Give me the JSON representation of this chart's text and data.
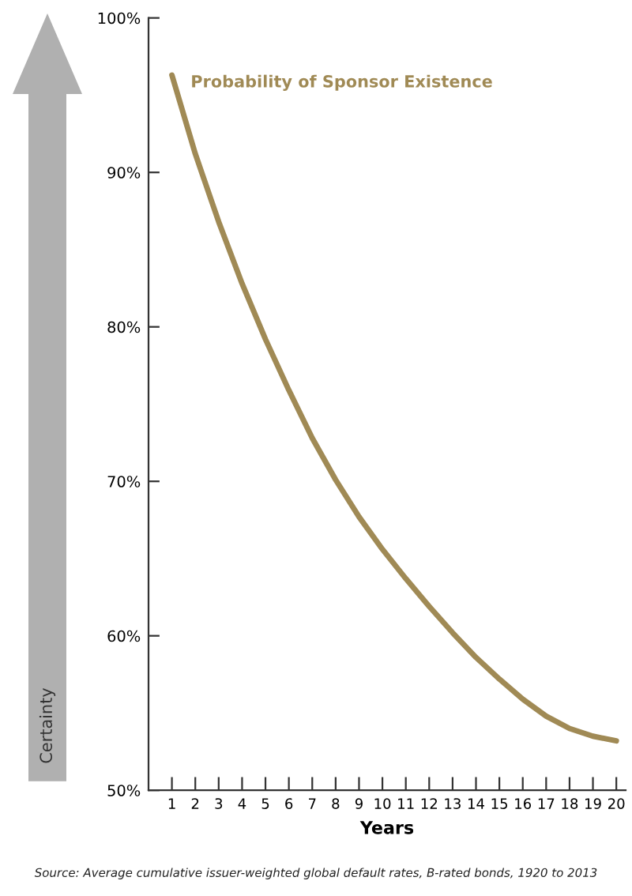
{
  "chart_data": {
    "type": "line",
    "xlabel": "Years",
    "ylabel": "Certainty",
    "x": [
      1,
      2,
      3,
      4,
      5,
      6,
      7,
      8,
      9,
      10,
      11,
      12,
      13,
      14,
      15,
      16,
      17,
      18,
      19,
      20
    ],
    "series": [
      {
        "name": "Probability of Sponsor Existence",
        "color": "#a08a55",
        "values": [
          96.3,
          91.2,
          86.8,
          82.8,
          79.2,
          75.9,
          72.8,
          70.1,
          67.7,
          65.6,
          63.7,
          61.9,
          60.2,
          58.6,
          57.2,
          55.9,
          54.8,
          54.0,
          53.5,
          53.2
        ]
      }
    ],
    "xlim": [
      0,
      20.4
    ],
    "xticks": [
      1,
      2,
      3,
      4,
      5,
      6,
      7,
      8,
      9,
      10,
      11,
      12,
      13,
      14,
      15,
      16,
      17,
      18,
      19,
      20
    ],
    "ylim": [
      50,
      100
    ],
    "yticks": [
      {
        "value": 50,
        "label": "50%"
      },
      {
        "value": 60,
        "label": "60%"
      },
      {
        "value": 70,
        "label": "70%"
      },
      {
        "value": 80,
        "label": "80%"
      },
      {
        "value": 90,
        "label": "90%"
      },
      {
        "value": 100,
        "label": "100%"
      }
    ],
    "grid": false,
    "legend": false,
    "marker": "none",
    "line_style": "solid",
    "annotations": [
      "Source: Average cumulative issuer-weighted global default rates, B-rated bonds, 1920 to 2013"
    ]
  }
}
